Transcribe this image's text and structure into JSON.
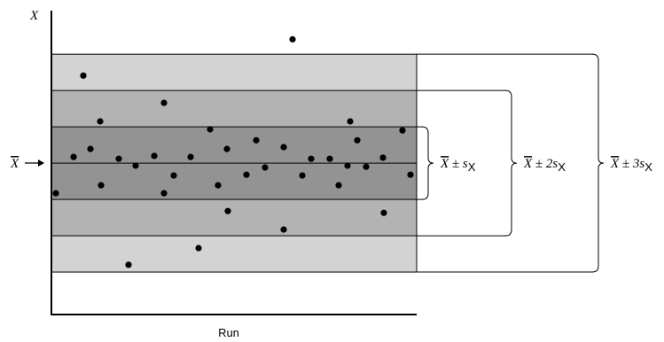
{
  "chart_data": {
    "type": "scatter",
    "y_label": "X",
    "x_label": "Run",
    "mean_symbol": "X",
    "mean": 0,
    "xlim": [
      0,
      41.2
    ],
    "ylim": [
      -4.17,
      4.2
    ],
    "bands": [
      {
        "k": 3,
        "color": "#d3d3d3",
        "text": " ± 3s",
        "sub": "X"
      },
      {
        "k": 2,
        "color": "#b3b3b3",
        "text": " ± 2s",
        "sub": "X"
      },
      {
        "k": 1,
        "color": "#939393",
        "text": " ± s",
        "sub": "X"
      }
    ],
    "x": [
      0.5,
      2.5,
      3.6,
      4.4,
      5.5,
      5.6,
      7.6,
      8.7,
      9.5,
      11.6,
      12.7,
      12.7,
      13.8,
      15.7,
      16.6,
      17.9,
      18.8,
      19.8,
      19.9,
      22,
      23.1,
      24.1,
      26.2,
      26.2,
      27.2,
      28.3,
      29.3,
      31.4,
      32.4,
      33.4,
      33.7,
      34.5,
      35.5,
      37.4,
      37.5,
      39.6,
      40.5
    ],
    "values": [
      -0.83,
      0.17,
      2.41,
      0.39,
      1.15,
      -0.61,
      0.12,
      -2.8,
      -0.07,
      0.2,
      1.66,
      -0.83,
      -0.34,
      0.17,
      -2.34,
      0.93,
      -0.61,
      0.39,
      -1.32,
      -0.32,
      0.63,
      -0.12,
      0.44,
      -1.83,
      3.41,
      -0.34,
      0.12,
      0.12,
      -0.61,
      -0.07,
      1.15,
      0.63,
      -0.1,
      0.15,
      -1.37,
      0.9,
      -0.32
    ],
    "color": "#000000"
  }
}
